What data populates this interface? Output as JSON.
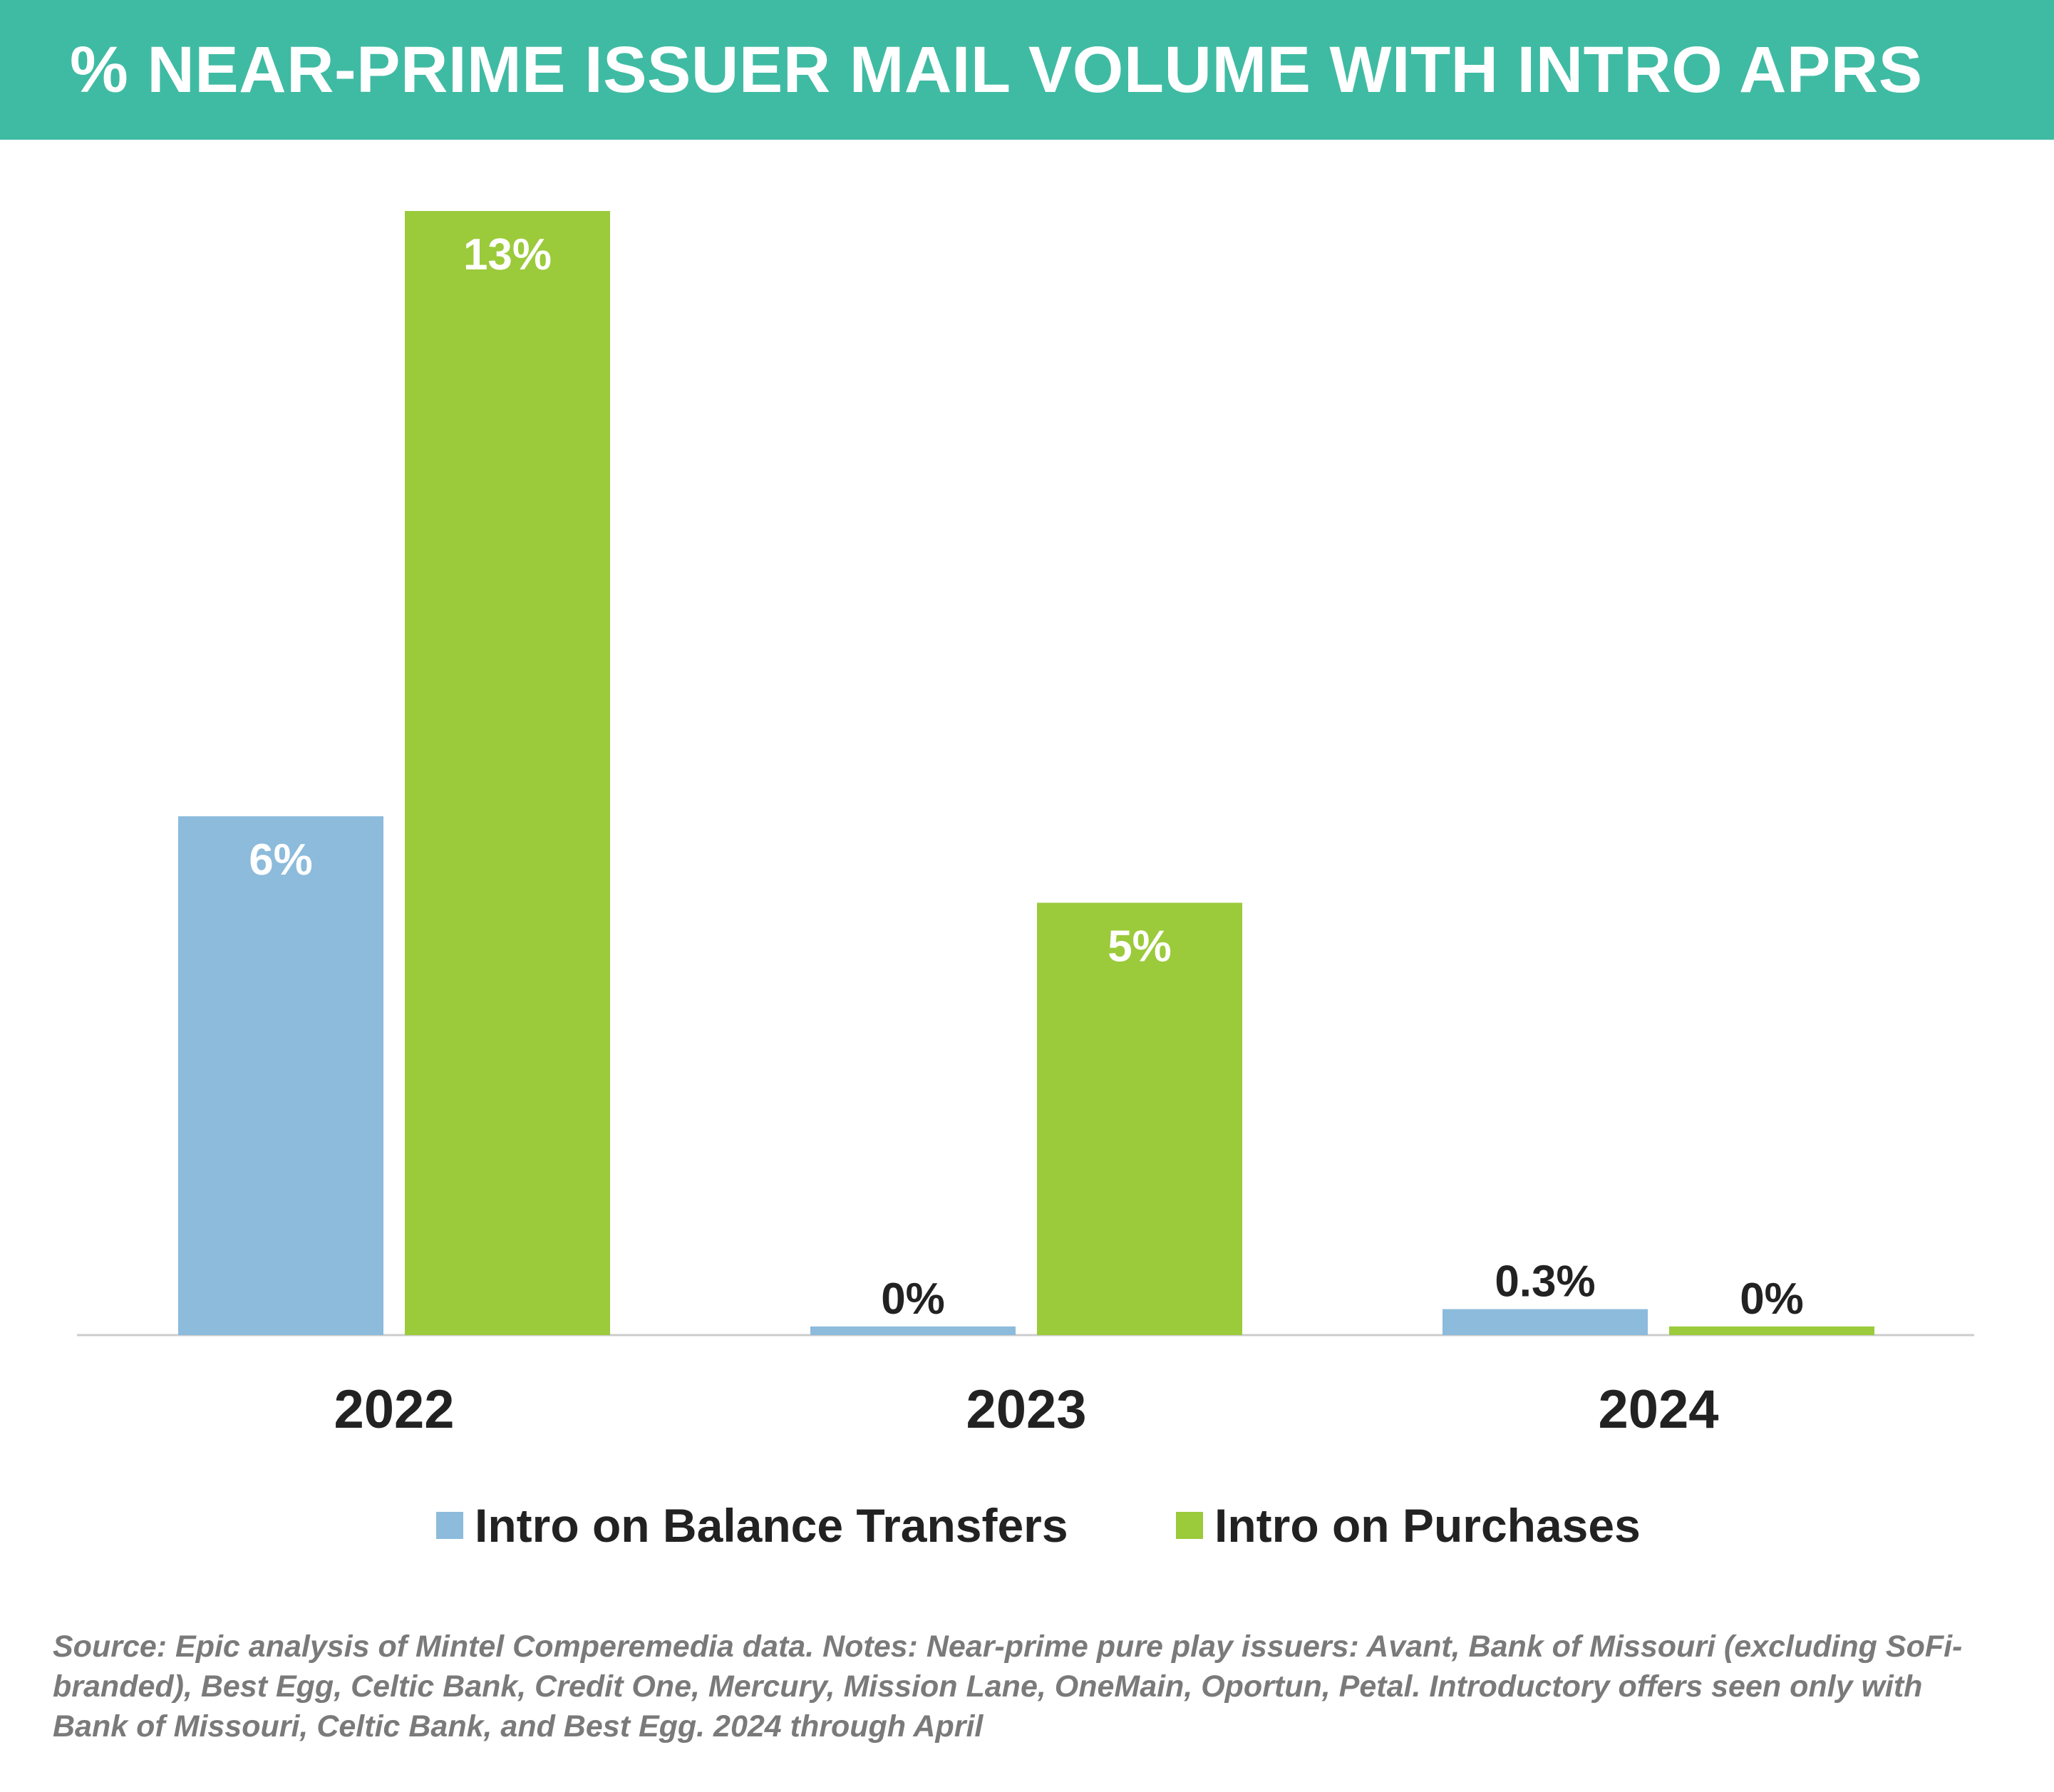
{
  "title": "% NEAR-PRIME ISSUER MAIL VOLUME WITH INTRO APRS",
  "colors": {
    "banner": "#40bba3",
    "balance_transfers": "#8cbbdc",
    "purchases": "#9bca3b",
    "axis": "#cccccc"
  },
  "legend": {
    "balance_transfers": "Intro on Balance Transfers",
    "purchases": "Intro on Purchases"
  },
  "source_note": "Source: Epic analysis of Mintel Comperemedia data. Notes: Near-prime pure play issuers: Avant, Bank of Missouri (excluding SoFi-branded), Best Egg, Celtic Bank, Credit One, Mercury, Mission Lane, OneMain, Oportun, Petal. Introductory offers seen only with Bank of Missouri, Celtic Bank, and Best Egg. 2024 through April",
  "chart_data": {
    "type": "bar",
    "title": "% NEAR-PRIME ISSUER MAIL VOLUME WITH INTRO APRS",
    "categories": [
      "2022",
      "2023",
      "2024"
    ],
    "series": [
      {
        "name": "Intro on Balance Transfers",
        "values": [
          6,
          0.1,
          0.3
        ],
        "labels": [
          "6%",
          "0%",
          "0.3%"
        ],
        "color": "#8cbbdc"
      },
      {
        "name": "Intro on Purchases",
        "values": [
          13,
          5,
          0.1
        ],
        "labels": [
          "13%",
          "5%",
          "0%"
        ],
        "color": "#9bca3b"
      }
    ],
    "ylim": [
      0,
      13
    ],
    "xlabel": "",
    "ylabel": "",
    "grid": false,
    "legend_position": "bottom"
  }
}
